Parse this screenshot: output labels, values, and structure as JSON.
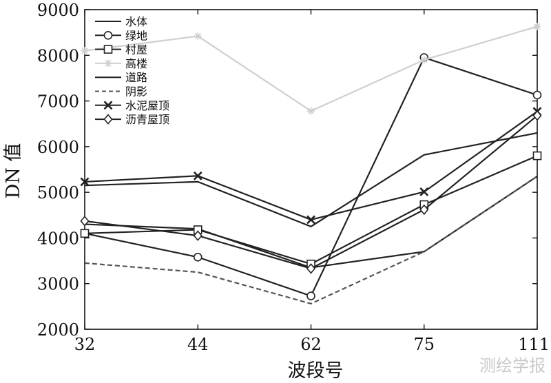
{
  "chart_data": {
    "type": "line",
    "xlabel": "波段号",
    "ylabel": "DN 值",
    "categories": [
      "32",
      "44",
      "62",
      "75",
      "111"
    ],
    "ylim": [
      2000,
      9000
    ],
    "yticks": [
      "2000",
      "3000",
      "4000",
      "5000",
      "6000",
      "7000",
      "8000",
      "9000"
    ],
    "legend_position": "top-left",
    "grid": false,
    "series": [
      {
        "name": "水体",
        "values": [
          4300,
          4200,
          3350,
          3700,
          5350
        ],
        "color": "#222222",
        "marker": "none",
        "dash": "solid"
      },
      {
        "name": "绿地",
        "values": [
          4100,
          3580,
          2730,
          7950,
          7130
        ],
        "color": "#222222",
        "marker": "circle",
        "dash": "solid"
      },
      {
        "name": "村屋",
        "values": [
          4100,
          4180,
          3430,
          4730,
          5800
        ],
        "color": "#222222",
        "marker": "square",
        "dash": "solid"
      },
      {
        "name": "高楼",
        "values": [
          8100,
          8420,
          6780,
          7900,
          8630
        ],
        "color": "#cfcfcf",
        "marker": "asterisk",
        "dash": "solid"
      },
      {
        "name": "道路",
        "values": [
          5150,
          5230,
          4250,
          5820,
          6300
        ],
        "color": "#222222",
        "marker": "none",
        "dash": "solid"
      },
      {
        "name": "阴影",
        "values": [
          3450,
          3250,
          2560,
          3700,
          5350
        ],
        "color": "#555555",
        "marker": "none",
        "dash": "dashed"
      },
      {
        "name": "水泥屋顶",
        "values": [
          5230,
          5360,
          4400,
          5010,
          6770
        ],
        "color": "#222222",
        "marker": "x",
        "dash": "solid"
      },
      {
        "name": "沥青屋顶",
        "values": [
          4370,
          4050,
          3330,
          4620,
          6680
        ],
        "color": "#222222",
        "marker": "diamond",
        "dash": "solid"
      }
    ]
  },
  "watermark": "测绘学报"
}
